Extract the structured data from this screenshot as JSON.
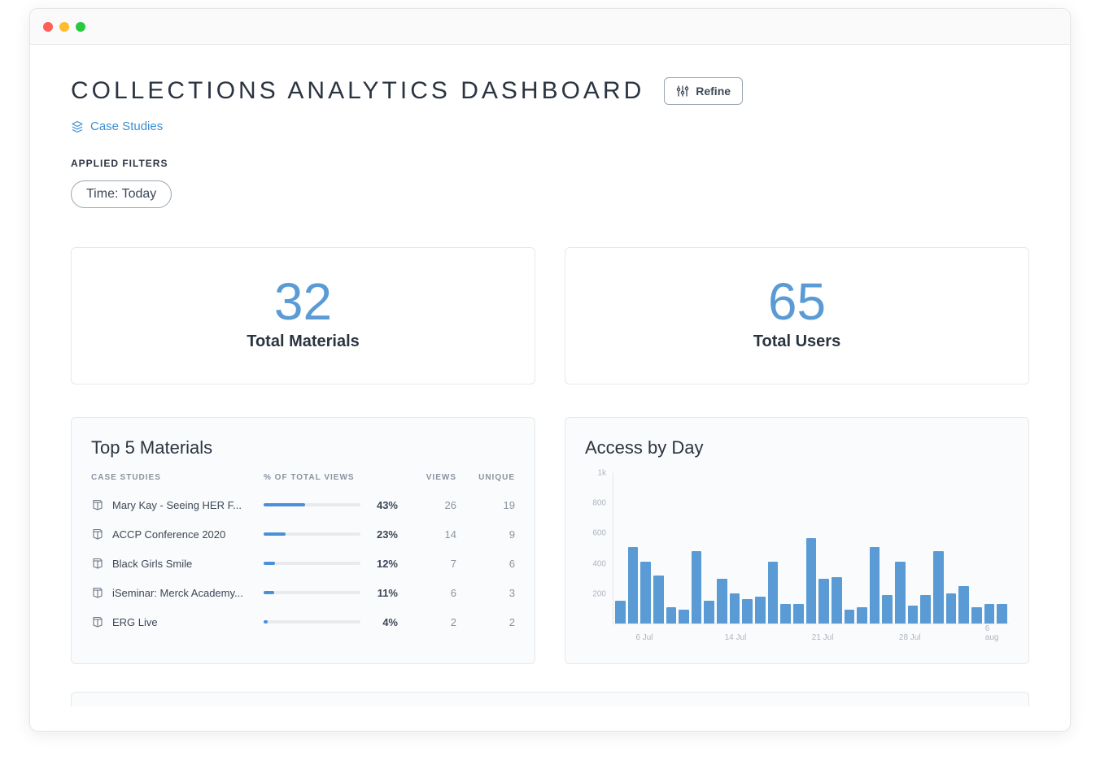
{
  "header": {
    "title": "COLLECTIONS ANALYTICS DASHBOARD",
    "refine_label": "Refine",
    "breadcrumb_label": "Case Studies",
    "applied_filters_label": "APPLIED FILTERS",
    "filter_chip": "Time: Today"
  },
  "kpis": {
    "materials": {
      "value": "32",
      "label": "Total Materials"
    },
    "users": {
      "value": "65",
      "label": "Total Users"
    }
  },
  "top_materials": {
    "title": "Top 5 Materials",
    "columns": {
      "name": "CASE STUDIES",
      "pct": "% OF TOTAL VIEWS",
      "views": "VIEWS",
      "unique": "UNIQUE"
    },
    "bar_track_color": "#e8ebee",
    "bar_fill_color": "#4a90d9",
    "rows": [
      {
        "name": "Mary Kay - Seeing HER F...",
        "pct": 43,
        "pct_label": "43%",
        "views": "26",
        "unique": "19"
      },
      {
        "name": "ACCP Conference 2020",
        "pct": 23,
        "pct_label": "23%",
        "views": "14",
        "unique": "9"
      },
      {
        "name": "Black Girls Smile",
        "pct": 12,
        "pct_label": "12%",
        "views": "7",
        "unique": "6"
      },
      {
        "name": "iSeminar: Merck Academy...",
        "pct": 11,
        "pct_label": "11%",
        "views": "6",
        "unique": "3"
      },
      {
        "name": "ERG Live",
        "pct": 4,
        "pct_label": "4%",
        "views": "2",
        "unique": "2"
      }
    ]
  },
  "access_chart": {
    "title": "Access by Day",
    "type": "bar",
    "bar_color": "#5a9bd5",
    "background_color": "#fafbfc",
    "ylim": [
      0,
      1000
    ],
    "y_ticks": [
      {
        "value": 1000,
        "label": "1k"
      },
      {
        "value": 800,
        "label": "800"
      },
      {
        "value": 600,
        "label": "600"
      },
      {
        "value": 400,
        "label": "400"
      },
      {
        "value": 200,
        "label": "200"
      }
    ],
    "x_ticks": [
      {
        "pos_pct": 8,
        "label": "6 Jul"
      },
      {
        "pos_pct": 31,
        "label": "14 Jul"
      },
      {
        "pos_pct": 53,
        "label": "21 Jul"
      },
      {
        "pos_pct": 75,
        "label": "28 Jul"
      },
      {
        "pos_pct": 96,
        "label": "6 aug"
      }
    ],
    "values": [
      150,
      510,
      410,
      320,
      110,
      90,
      480,
      150,
      300,
      200,
      160,
      180,
      410,
      130,
      130,
      570,
      300,
      310,
      90,
      110,
      510,
      190,
      410,
      120,
      190,
      480,
      200,
      250,
      110,
      130,
      130
    ]
  },
  "colors": {
    "accent": "#5a9bd5",
    "link": "#3b8fd6",
    "text_dark": "#2b3441",
    "text_muted": "#8a94a1",
    "border": "#e5e8eb"
  }
}
